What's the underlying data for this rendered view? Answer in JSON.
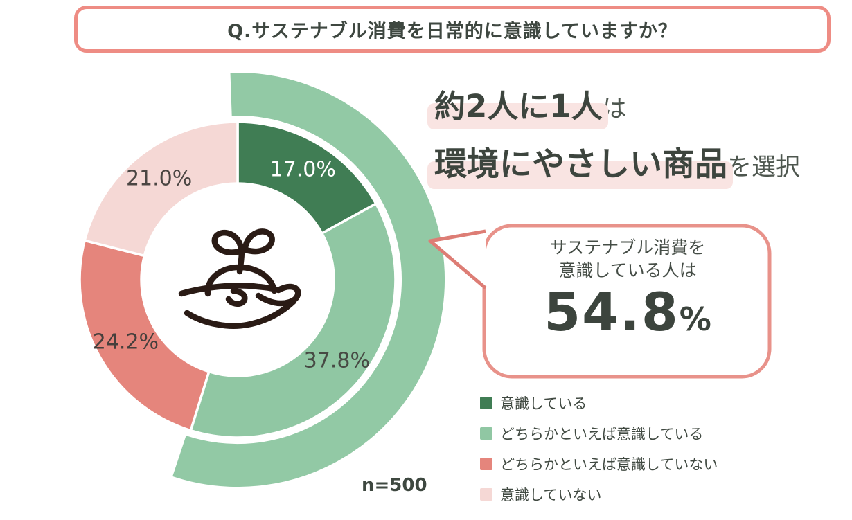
{
  "question_banner": {
    "text": "Q.サステナブル消費を日常的に意識していますか？"
  },
  "chart_data": {
    "type": "pie",
    "title": "Q.サステナブル消費を日常的に意識していますか？",
    "subtype": "donut",
    "legend_position": "bottom-right",
    "sample_size_label": "n=500",
    "segments": [
      {
        "label": "意識している",
        "value": 17.0,
        "display": "17.0%",
        "color": "#407d54",
        "label_color": "#ffffff"
      },
      {
        "label": "どちらかといえば意識している",
        "value": 37.8,
        "display": "37.8%",
        "color": "#90c7a3",
        "label_color": "#474a44"
      },
      {
        "label": "どちらかといえば意識していない",
        "value": 24.2,
        "display": "24.2%",
        "color": "#e5857c",
        "label_color": "#453f3c"
      },
      {
        "label": "意識していない",
        "value": 21.0,
        "display": "21.0%",
        "color": "#f5d8d5",
        "label_color": "#4b4643"
      }
    ],
    "highlight_arc": {
      "percent": 54.8,
      "color": "#92c9a5",
      "meaning": "意識している + どちらかといえば意識している"
    }
  },
  "headline": {
    "line1_highlight": "約2人に1人",
    "line1_rest": "は",
    "line2_highlight": "環境にやさしい商品",
    "line2_rest": "を選択"
  },
  "callout": {
    "line1": "サステナブル消費を",
    "line2": "意識している人は",
    "value_display": "54.8",
    "unit": "%"
  },
  "sample_size": "n=500",
  "colors": {
    "banner_border": "#ee8c84",
    "bubble_border": "#e8928a",
    "pointer_line": "#dd7d75",
    "highlight_band": "#f9e4e2",
    "text_dark": "#3e4740",
    "icon_stroke": "#2a1b15",
    "background": "#ffffff"
  }
}
